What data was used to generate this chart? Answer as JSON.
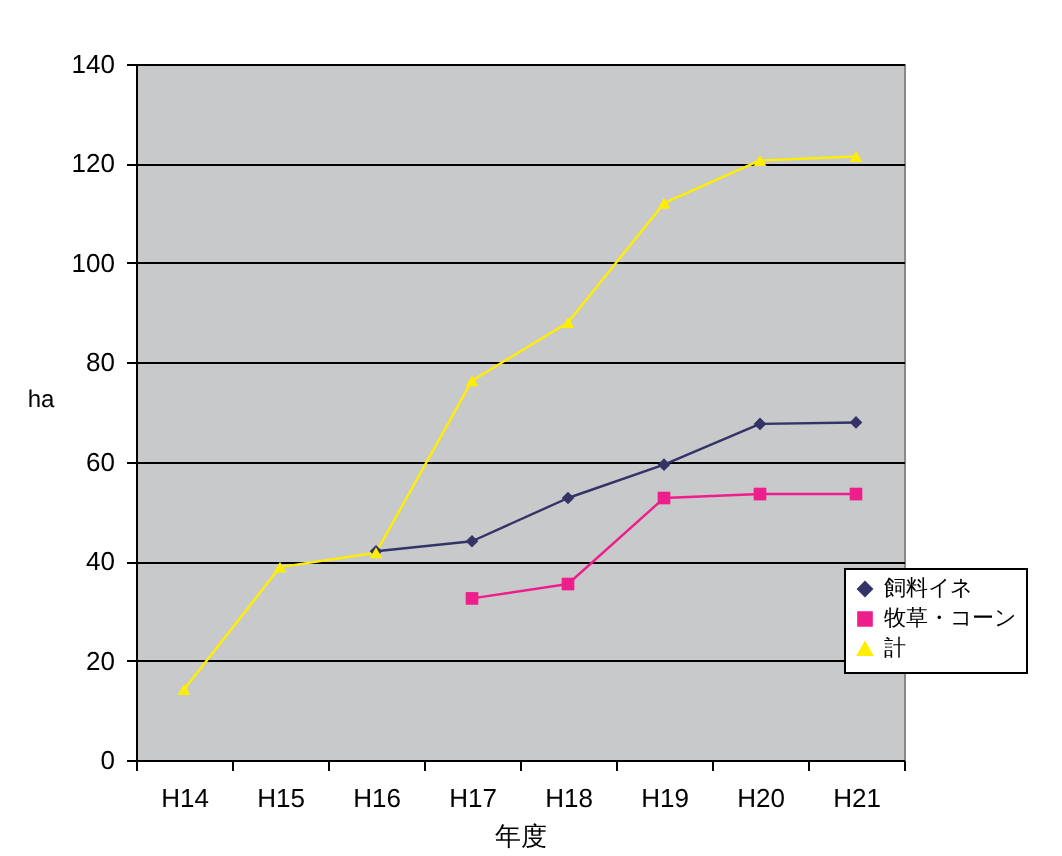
{
  "chart_data": {
    "type": "line",
    "xlabel": "年度",
    "ylabel": "ha",
    "categories": [
      "H14",
      "H15",
      "H16",
      "H17",
      "H18",
      "H19",
      "H20",
      "H21"
    ],
    "series": [
      {
        "name": "飼料イネ",
        "color": "#333366",
        "marker": "diamond",
        "values": [
          null,
          null,
          42,
          44,
          52.7,
          59.4,
          67.6,
          67.9
        ]
      },
      {
        "name": "牧草・コーン",
        "color": "#ee1e8c",
        "marker": "square",
        "values": [
          null,
          null,
          null,
          32.5,
          35.4,
          52.7,
          53.5,
          53.5
        ]
      },
      {
        "name": "計",
        "color": "#ffee00",
        "marker": "triangle",
        "values": [
          14.2,
          38.8,
          41.7,
          76.3,
          88,
          112,
          120.6,
          121.4
        ]
      }
    ],
    "ylim": [
      0,
      140
    ],
    "yticks": [
      0,
      20,
      40,
      60,
      80,
      100,
      120,
      140
    ],
    "grid": "y",
    "legend": "right"
  }
}
